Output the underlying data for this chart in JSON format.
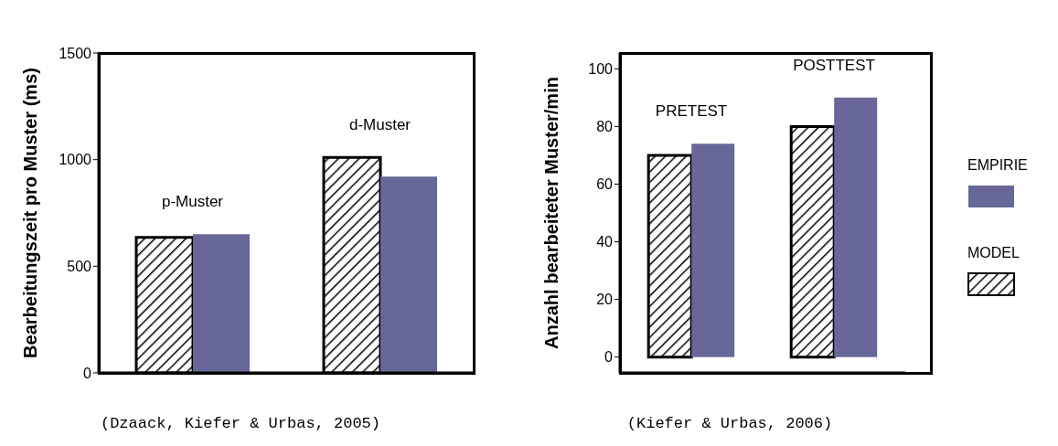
{
  "chart_data": [
    {
      "type": "bar",
      "ylabel": "Bearbeitungszeit pro Muster (ms)",
      "categories": [
        "p-Muster",
        "d-Muster"
      ],
      "series": [
        {
          "color": "#000000",
          "values": [
            635,
            1010
          ]
        },
        {
          "color": "#676799",
          "values": [
            650,
            920
          ]
        }
      ],
      "ylim": [
        0,
        1500
      ],
      "yticks": [
        0,
        500,
        1000,
        1500
      ],
      "grid": false,
      "legend": false,
      "annotations": [
        "(Dzaack, Kiefer & Urbas, 2005)"
      ]
    },
    {
      "type": "bar",
      "ylabel": "Anzahl bearbeiteter Muster/min",
      "categories": [
        "PRETEST",
        "POSTTEST"
      ],
      "series": [
        {
          "name": "MODEL",
          "color": "#000000",
          "values": [
            70,
            80
          ]
        },
        {
          "name": "EMPIRIE",
          "color": "#676799",
          "values": [
            74,
            90
          ]
        }
      ],
      "ylim": [
        -5.5,
        105.5
      ],
      "yticks": [
        0,
        20,
        40,
        60,
        80,
        100
      ],
      "grid": false,
      "legend": "right",
      "annotations": [
        "(Kiefer & Urbas, 2006)"
      ]
    }
  ]
}
